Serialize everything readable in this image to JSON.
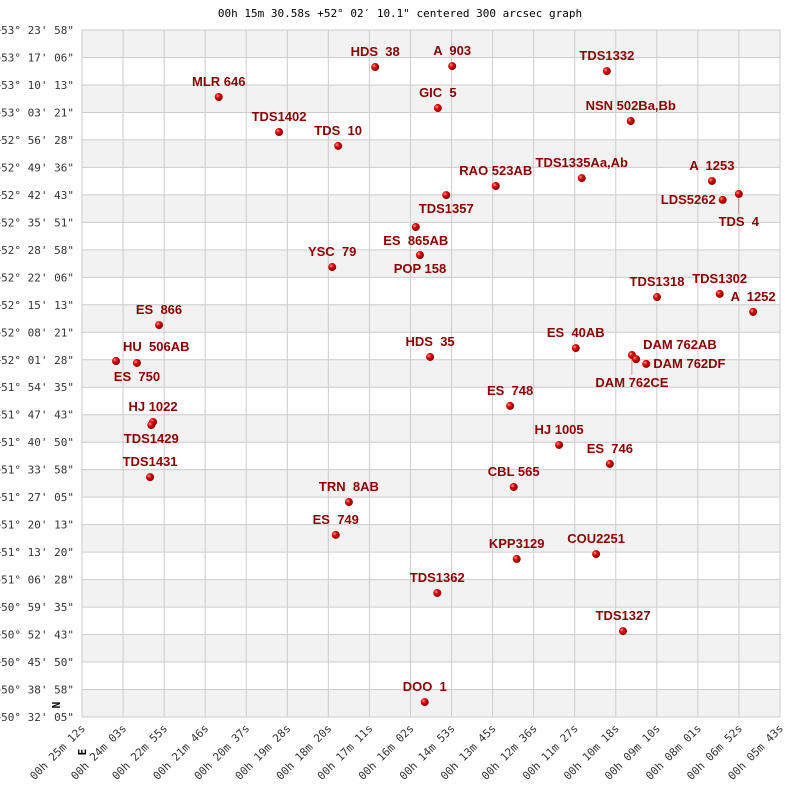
{
  "chart_data": {
    "type": "scatter",
    "title": "00h 15m 30.58s +52° 02′ 10.1\" centered 300 arcsec graph",
    "x_unit": "RA seconds of time (decreasing left to right)",
    "xlim": [
      1512,
      343
    ],
    "ylim": [
      50.53472,
      53.39944
    ],
    "grid": true,
    "x_tick_labels": [
      "00h 25m 12s",
      "00h 24m 03s",
      "00h 22m 55s",
      "00h 21m 46s",
      "00h 20m 37s",
      "00h 19m 28s",
      "00h 18m 20s",
      "00h 17m 11s",
      "00h 16m 02s",
      "00h 14m 53s",
      "00h 13m 45s",
      "00h 12m 36s",
      "00h 11m 27s",
      "00h 10m 18s",
      "00h 09m 10s",
      "00h 08m 01s",
      "00h 06m 52s",
      "00h 05m 43s"
    ],
    "y_tick_labels": [
      "+53° 23' 58\"",
      "+53° 17' 06\"",
      "+53° 10' 13\"",
      "+53° 03' 21\"",
      "+52° 56' 28\"",
      "+52° 49' 36\"",
      "+52° 42' 43\"",
      "+52° 35' 51\"",
      "+52° 28' 58\"",
      "+52° 22' 06\"",
      "+52° 15' 13\"",
      "+52° 08' 21\"",
      "+52° 01' 28\"",
      "+51° 54' 35\"",
      "+51° 47' 43\"",
      "+51° 40' 50\"",
      "+51° 33' 58\"",
      "+51° 27' 05\"",
      "+51° 20' 13\"",
      "+51° 13' 20\"",
      "+51° 06' 28\"",
      "+50° 59' 35\"",
      "+50° 52' 43\"",
      "+50° 45' 50\"",
      "+50° 38' 58\"",
      "+50° 32' 05\""
    ],
    "compass": {
      "north": "N",
      "east": "E"
    },
    "colors": {
      "label": "#8b0000",
      "point": "#dd0000",
      "band": "#f2f2f2",
      "grid": "#cccccc"
    },
    "points": [
      {
        "name": "HDS  38",
        "ra": 1021,
        "dec": 53.245
      },
      {
        "name": "A  903",
        "ra": 892,
        "dec": 53.249
      },
      {
        "name": "TDS1332",
        "ra": 633,
        "dec": 53.228
      },
      {
        "name": "MLR 646",
        "ra": 1283,
        "dec": 53.12
      },
      {
        "name": "GIC  5",
        "ra": 916,
        "dec": 53.074
      },
      {
        "name": "NSN 502Ba,Bb",
        "ra": 593,
        "dec": 53.02
      },
      {
        "name": "TDS1402",
        "ra": 1182,
        "dec": 52.974
      },
      {
        "name": "TDS  10",
        "ra": 1083,
        "dec": 52.916
      },
      {
        "name": "TDS1335Aa,Ab",
        "ra": 675,
        "dec": 52.782
      },
      {
        "name": "RAO 523AB",
        "ra": 819,
        "dec": 52.749
      },
      {
        "name": "TDS1357",
        "ra": 902,
        "dec": 52.711
      },
      {
        "name": "A  1253",
        "ra": 457,
        "dec": 52.77
      },
      {
        "name": "TDS  4",
        "ra": 412,
        "dec": 52.716
      },
      {
        "name": "LDS5262",
        "ra": 439,
        "dec": 52.691
      },
      {
        "name": "ES  865AB",
        "ra": 953,
        "dec": 52.578
      },
      {
        "name": "POP 158",
        "ra": 946,
        "dec": 52.461
      },
      {
        "name": "YSC  79",
        "ra": 1093,
        "dec": 52.411
      },
      {
        "name": "TDS1318",
        "ra": 549,
        "dec": 52.286
      },
      {
        "name": "TDS1302",
        "ra": 444,
        "dec": 52.299
      },
      {
        "name": "A  1252",
        "ra": 388,
        "dec": 52.224
      },
      {
        "name": "ES  866",
        "ra": 1383,
        "dec": 52.169
      },
      {
        "name": "ES  40AB",
        "ra": 685,
        "dec": 52.073
      },
      {
        "name": "HDS  35",
        "ra": 929,
        "dec": 52.036
      },
      {
        "name": "HU  506AB",
        "ra": 1455,
        "dec": 52.019
      },
      {
        "name": "ES  750",
        "ra": 1420,
        "dec": 52.011
      },
      {
        "name": "DAM 762CE",
        "ra": 591,
        "dec": 52.044
      },
      {
        "name": "DAM 762AB",
        "ra": 584,
        "dec": 52.027
      },
      {
        "name": "DAM 762DF",
        "ra": 567,
        "dec": 52.007
      },
      {
        "name": "ES  748",
        "ra": 795,
        "dec": 51.832
      },
      {
        "name": "HJ 1022",
        "ra": 1393,
        "dec": 51.765
      },
      {
        "name": "TDS1429",
        "ra": 1396,
        "dec": 51.752
      },
      {
        "name": "HJ 1005",
        "ra": 713,
        "dec": 51.669
      },
      {
        "name": "ES  746",
        "ra": 628,
        "dec": 51.59
      },
      {
        "name": "TDS1431",
        "ra": 1398,
        "dec": 51.535
      },
      {
        "name": "CBL 565",
        "ra": 789,
        "dec": 51.494
      },
      {
        "name": "TRN  8AB",
        "ra": 1065,
        "dec": 51.431
      },
      {
        "name": "ES  749",
        "ra": 1087,
        "dec": 51.294
      },
      {
        "name": "COU2251",
        "ra": 651,
        "dec": 51.214
      },
      {
        "name": "KPP3129",
        "ra": 784,
        "dec": 51.194
      },
      {
        "name": "TDS1362",
        "ra": 917,
        "dec": 51.052
      },
      {
        "name": "TDS1327",
        "ra": 606,
        "dec": 50.893
      },
      {
        "name": "DOO  1",
        "ra": 938,
        "dec": 50.597
      }
    ]
  }
}
